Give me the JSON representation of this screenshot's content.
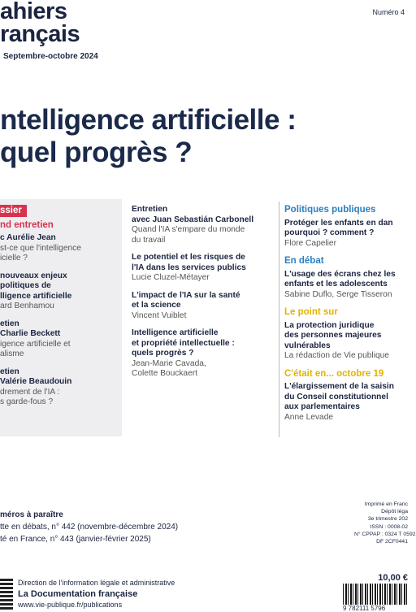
{
  "header": {
    "logo_lines": [
      "ahiers",
      "rançais"
    ],
    "issue_date": "Septembre-octobre 2024",
    "number": "Numéro 4"
  },
  "title_lines": [
    "ntelligence artificielle :",
    "quel progrès ?"
  ],
  "columns": [
    [
      {
        "label": "ssier"
      },
      {
        "section": "nd entretien",
        "color": "#d6334f"
      },
      {
        "title": [
          "c Aurélie Jean"
        ],
        "text": [
          "st-ce que l'intelligence",
          "icielle ?"
        ]
      },
      {
        "title": [
          "nouveaux enjeux",
          "politiques de",
          "lligence artificielle"
        ],
        "text": [
          "ard Benhamou"
        ]
      },
      {
        "title": [
          "etien",
          "Charlie Beckett"
        ],
        "text": [
          "igence artificielle et",
          "alisme"
        ]
      },
      {
        "title": [
          "etien",
          "Valérie Beaudouin"
        ],
        "text": [
          "drement de l'IA :",
          "s garde-fous ?"
        ]
      }
    ],
    [
      {
        "title": [
          "Entretien",
          "avec Juan Sebastián Carbonell"
        ],
        "text": [
          "Quand l'IA s'empare du monde",
          "du travail"
        ]
      },
      {
        "title": [
          "Le potentiel et les risques de",
          "l'IA dans les services publics"
        ],
        "text": [
          "Lucie Cluzel-Métayer"
        ]
      },
      {
        "title": [
          "L'impact de l'IA sur la santé",
          "et la science"
        ],
        "text": [
          "Vincent Vuiblet"
        ]
      },
      {
        "title": [
          "Intelligence artificielle",
          "et propriété intellectuelle :",
          "quels progrès ?"
        ],
        "text": [
          "Jean-Marie Cavada,",
          "Colette Bouckaert"
        ]
      }
    ],
    [
      {
        "section": "Politiques publiques",
        "color": "#2a7fc1"
      },
      {
        "title": [
          "Protéger les enfants en dan",
          "pourquoi ? comment ?"
        ],
        "text": [
          "Flore Capelier"
        ]
      },
      {
        "section": "En débat",
        "color": "#2a7fc1"
      },
      {
        "title": [
          "L'usage des écrans chez les",
          "enfants et les adolescents"
        ],
        "text": [
          "Sabine Duflo, Serge Tisseron"
        ]
      },
      {
        "section": "Le point sur",
        "color": "#e0b400"
      },
      {
        "title": [
          "La protection juridique",
          "des personnes majeures",
          "vulnérables"
        ],
        "text": [
          "La rédaction de Vie publique"
        ]
      },
      {
        "section": "C'était en... octobre 19",
        "color": "#e0b400"
      },
      {
        "title": [
          "L'élargissement de la saisin",
          "du Conseil constitutionnel",
          "aux parlementaires"
        ],
        "text": [
          "Anne Levade"
        ]
      }
    ]
  ],
  "footer": {
    "upcoming_title": "méros à paraître",
    "upcoming": [
      "tte en débats, n° 442 (novembre-décembre 2024)",
      "té en France, n° 443 (janvier-février 2025)"
    ],
    "legal": [
      "Imprimé en Franc",
      "Dépôt léga",
      "3e trimestre 202",
      "ISSN : 0008-02",
      "N° CPPAP : 0324 T 0592",
      "DF 2CF0441"
    ],
    "price": "10,00 €",
    "publisher": [
      "Direction de l'information légale et administrative",
      "La Documentation française",
      "www.vie-publique.fr/publications"
    ],
    "barcode": "9 782111 5796"
  }
}
